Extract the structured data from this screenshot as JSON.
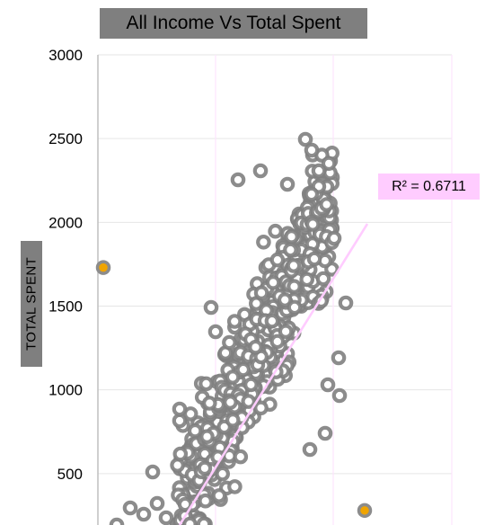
{
  "chart_data": {
    "type": "scatter",
    "title": "All Income Vs Total Spent",
    "xlabel": "",
    "ylabel": "TOTAL SPENT",
    "ylim": [
      0,
      3000
    ],
    "yticks": [
      500,
      1000,
      1500,
      2000,
      2500,
      3000
    ],
    "ytick_labels": [
      "500",
      "1000",
      "1500",
      "2000",
      "2500",
      "3000"
    ],
    "grid": true,
    "trendline": {
      "type": "linear",
      "r_squared_label": "R² = 0.6711",
      "color": "#ffccff"
    },
    "colors": {
      "marker": "#7f7f7f",
      "marker_center": "#ffffff",
      "outlier": "#f0a400",
      "grid_major": "#e6e6e6",
      "grid_minor": "#fce4fc",
      "axis": "#bfbfbf"
    },
    "outliers": [
      {
        "y": 1730
      },
      {
        "y": 280
      }
    ]
  }
}
